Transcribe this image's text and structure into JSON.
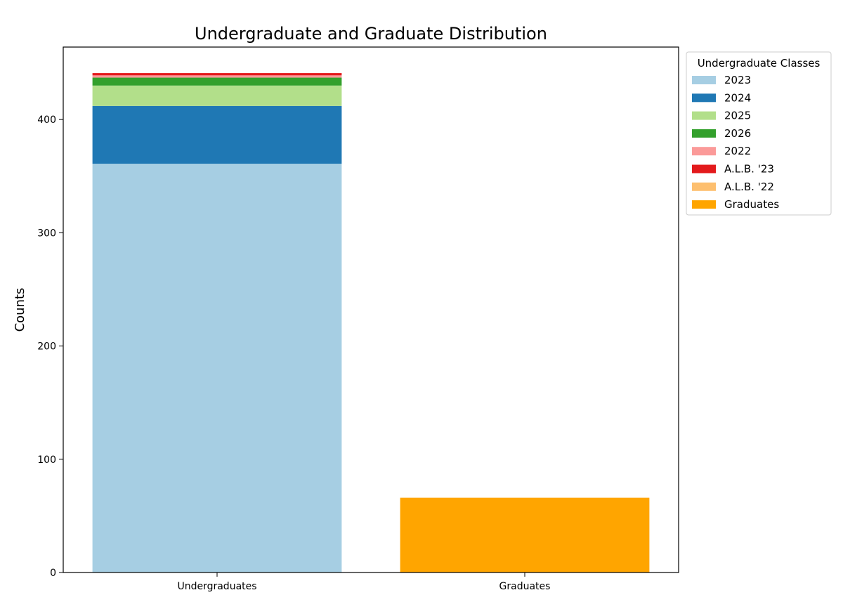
{
  "chart_data": {
    "type": "bar",
    "stacked": true,
    "title": "Undergraduate and Graduate Distribution",
    "xlabel": "",
    "ylabel": "Counts",
    "categories": [
      "Undergraduates",
      "Graduates"
    ],
    "ylim": [
      0,
      464
    ],
    "yticks": [
      0,
      100,
      200,
      300,
      400
    ],
    "grid": false,
    "legend": {
      "title": "Undergraduate Classes",
      "placement": "outside-top-right"
    },
    "series": [
      {
        "name": "2023",
        "color": "#a6cee3",
        "values": [
          361,
          0
        ]
      },
      {
        "name": "2024",
        "color": "#1f78b4",
        "values": [
          51,
          0
        ]
      },
      {
        "name": "2025",
        "color": "#b2df8a",
        "values": [
          18,
          0
        ]
      },
      {
        "name": "2026",
        "color": "#33a02c",
        "values": [
          7,
          0
        ]
      },
      {
        "name": "2022",
        "color": "#fb9a99",
        "values": [
          2,
          0
        ]
      },
      {
        "name": "A.L.B. '23",
        "color": "#e31a1c",
        "values": [
          2,
          0
        ]
      },
      {
        "name": "A.L.B. '22",
        "color": "#fdbf6f",
        "values": [
          0,
          0
        ]
      },
      {
        "name": "Graduates",
        "color": "#ffa500",
        "values": [
          0,
          66
        ]
      }
    ]
  }
}
